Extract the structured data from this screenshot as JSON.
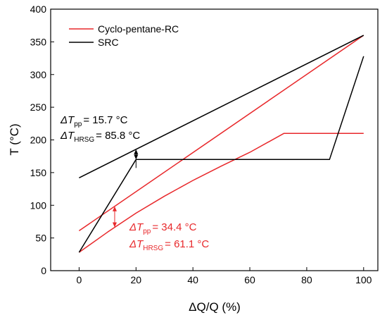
{
  "chart_data": {
    "type": "line",
    "xlabel": "ΔQ/Q (%)",
    "ylabel": "T (°C)",
    "xlim": [
      -10,
      105
    ],
    "ylim": [
      0,
      400
    ],
    "xticks": [
      0,
      20,
      40,
      60,
      80,
      100
    ],
    "yticks": [
      0,
      50,
      100,
      150,
      200,
      250,
      300,
      350,
      400
    ],
    "legend_position": "top-left",
    "series": [
      {
        "name": "Cyclo-pentane-RC",
        "color": "#e8282b",
        "lines": [
          {
            "x": [
              0,
              100
            ],
            "y": [
              61,
              360
            ]
          },
          {
            "x": [
              0,
              10,
              20,
              30,
              40,
              50,
              60,
              72,
              100
            ],
            "y": [
              28,
              59,
              88,
              114,
              138,
              160,
              181,
              210,
              210
            ]
          }
        ]
      },
      {
        "name": "SRC",
        "color": "#000000",
        "lines": [
          {
            "x": [
              0,
              100
            ],
            "y": [
              142,
              360
            ]
          },
          {
            "x": [
              0,
              20,
              88,
              100
            ],
            "y": [
              28,
              170,
              170,
              328
            ]
          }
        ]
      }
    ],
    "annotations": [
      {
        "symbol": "ΔT",
        "sub": "pp",
        "text": "= 15.7 °C",
        "color": "#000000",
        "x": 20
      },
      {
        "symbol": "ΔT",
        "sub": "HRSG",
        "text": "= 85.8 °C",
        "color": "#000000",
        "x": 20
      },
      {
        "symbol": "ΔT",
        "sub": "pp",
        "text": "= 34.4 °C",
        "color": "#e8282b",
        "x": 12.5
      },
      {
        "symbol": "ΔT",
        "sub": "HRSG",
        "text": "= 61.1 °C",
        "color": "#e8282b",
        "x": 12.5
      }
    ]
  }
}
